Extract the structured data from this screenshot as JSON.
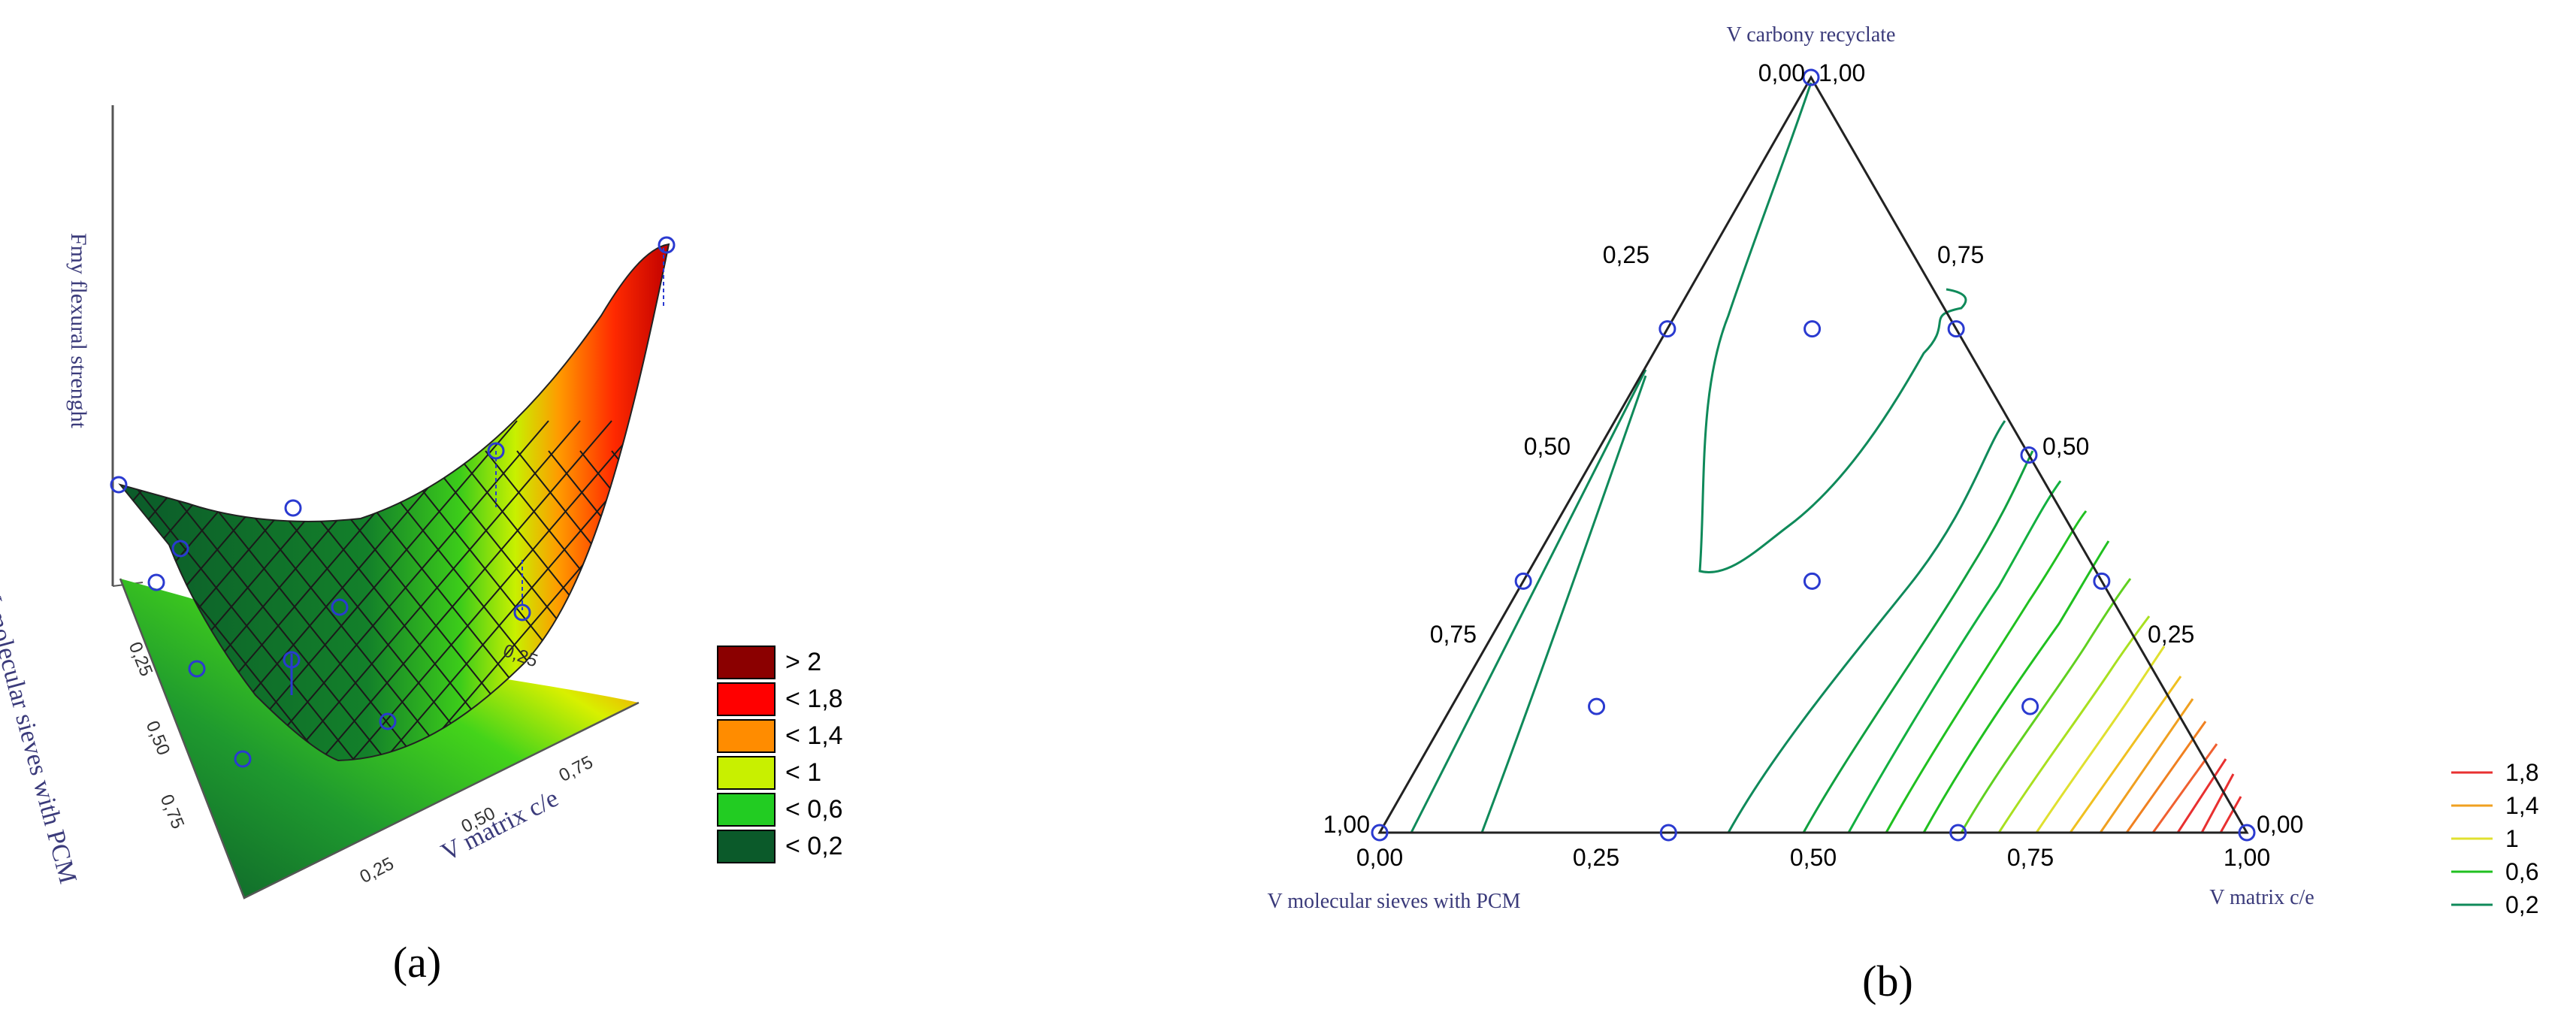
{
  "chart_data": [
    {
      "id": "a",
      "type": "surface",
      "panel_label": "(a)",
      "zlabel": "Fmy flexural strenght",
      "xlabel": "V matrix c/e",
      "ylabel": "V molecular sieves with PCM",
      "x_ticks": [
        "0,25",
        "0,50",
        "0,75"
      ],
      "y_ticks": [
        "0,25",
        "0,50",
        "0,75"
      ],
      "edge_tick": "0,25",
      "colorbar": {
        "labels": [
          "> 2",
          "< 1,8",
          "< 1,4",
          "< 1",
          "< 0,6",
          "< 0,2"
        ],
        "colors": [
          "#8b0000",
          "#ff0000",
          "#ff8c00",
          "#c8f000",
          "#22cc22",
          "#0b5a2a"
        ]
      }
    },
    {
      "id": "b",
      "type": "ternary-contour",
      "panel_label": "(b)",
      "top_label": "V carbony recyclate",
      "left_label": "V molecular sieves with PCM",
      "right_label": "V matrix c/e",
      "top_vertex_label": "0,00",
      "top_vertex_label2": "1,00",
      "left_vertex_label": "1,00",
      "right_vertex_label": "0,00",
      "bottom_ticks": [
        "0,00",
        "0,25",
        "0,50",
        "0,75",
        "1,00"
      ],
      "left_side_ticks": [
        "0,25",
        "0,50",
        "0,75"
      ],
      "right_side_ticks": [
        "0,75",
        "0,50",
        "0,25"
      ],
      "legend": {
        "labels": [
          "1,8",
          "1,4",
          "1",
          "0,6",
          "0,2"
        ],
        "colors": [
          "#e83030",
          "#f0a020",
          "#e0e030",
          "#20c020",
          "#0f8a5a"
        ]
      },
      "design_points": [
        {
          "matrix": 0.0,
          "carbony": 1.0
        },
        {
          "matrix": 0.5,
          "carbony": 0.5
        },
        {
          "matrix": 0.0,
          "carbony": 0.0
        },
        {
          "matrix": 1.0,
          "carbony": 0.0
        },
        {
          "matrix": 0.333,
          "carbony": 0.667
        },
        {
          "matrix": 0.167,
          "carbony": 0.667
        },
        {
          "matrix": 0.333,
          "carbony": 0.333
        },
        {
          "matrix": 0.167,
          "carbony": 0.167
        },
        {
          "matrix": 0.667,
          "carbony": 0.333
        },
        {
          "matrix": 0.0,
          "carbony": 0.333
        },
        {
          "matrix": 0.0,
          "carbony": 0.667
        },
        {
          "matrix": 0.667,
          "carbony": 0.0
        },
        {
          "matrix": 0.333,
          "carbony": 0.0
        },
        {
          "matrix": 0.667,
          "carbony": 0.167
        }
      ]
    }
  ]
}
